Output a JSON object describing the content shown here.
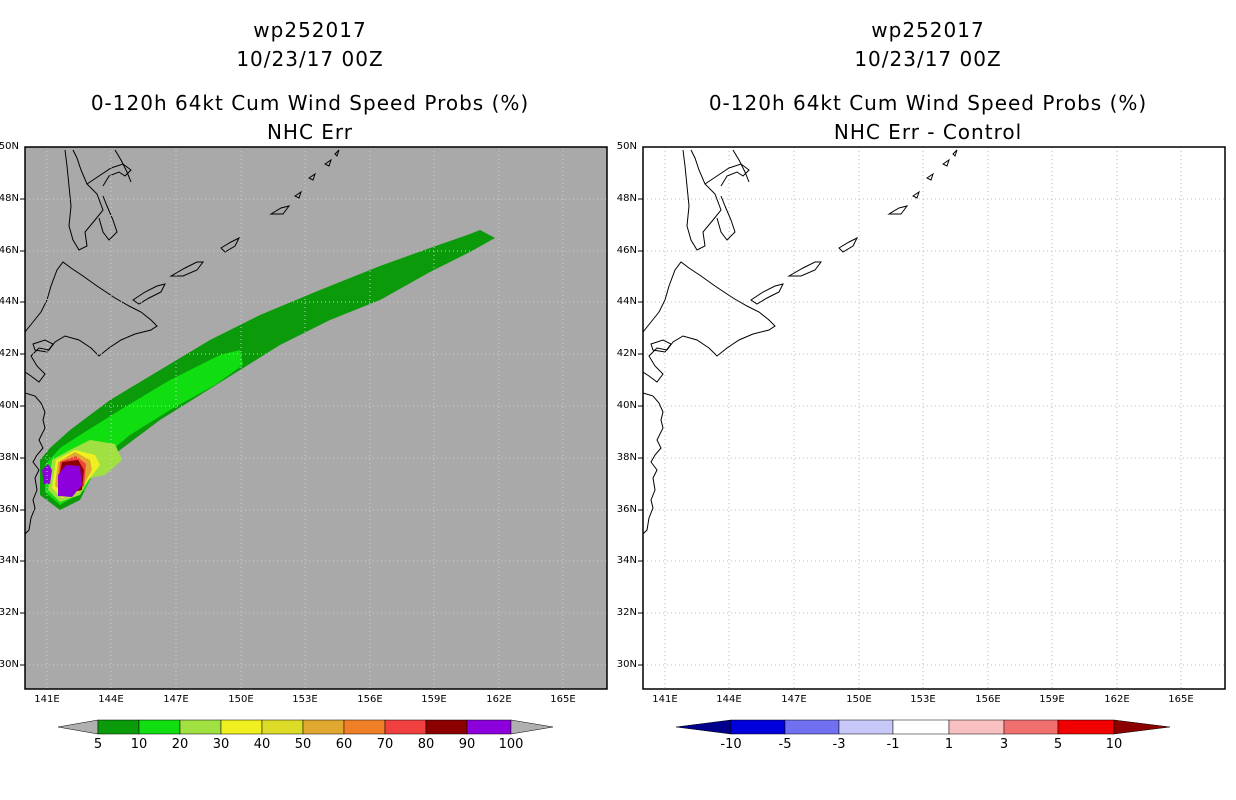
{
  "left_panel": {
    "title_line1": "wp252017",
    "title_line2": "10/23/17 00Z",
    "title_line3": "0-120h 64kt Cum Wind Speed Probs (%)",
    "title_line4": "NHC Err",
    "background_color": "#a9a9a9"
  },
  "right_panel": {
    "title_line1": "wp252017",
    "title_line2": "10/23/17 00Z",
    "title_line3": "0-120h 64kt Cum Wind Speed Probs (%)",
    "title_line4": "NHC Err - Control",
    "background_color": "#ffffff"
  },
  "axes": {
    "lat_ticks": [
      "50N",
      "48N",
      "46N",
      "44N",
      "42N",
      "40N",
      "38N",
      "36N",
      "34N",
      "32N",
      "30N"
    ],
    "lon_ticks": [
      "141E",
      "144E",
      "147E",
      "150E",
      "153E",
      "156E",
      "159E",
      "162E",
      "165E"
    ]
  },
  "left_colorbar": {
    "labels": [
      "5",
      "10",
      "20",
      "30",
      "40",
      "50",
      "60",
      "70",
      "80",
      "90",
      "100"
    ],
    "colors": [
      "#0a9a0a",
      "#10de10",
      "#a0e040",
      "#f0f020",
      "#dcdc28",
      "#e0a830",
      "#f08028",
      "#f04040",
      "#8c0000",
      "#8c00dc"
    ],
    "end_color": "#b0b0b0"
  },
  "right_colorbar": {
    "labels": [
      "-10",
      "-5",
      "-3",
      "-1",
      "1",
      "3",
      "5",
      "10"
    ],
    "colors": [
      "#0000dc",
      "#7070f0",
      "#c8c8f8",
      "#ffffff",
      "#f8c0c0",
      "#f07070",
      "#f00000"
    ],
    "low_end_color": "#00008c",
    "high_end_color": "#8c0000"
  }
}
